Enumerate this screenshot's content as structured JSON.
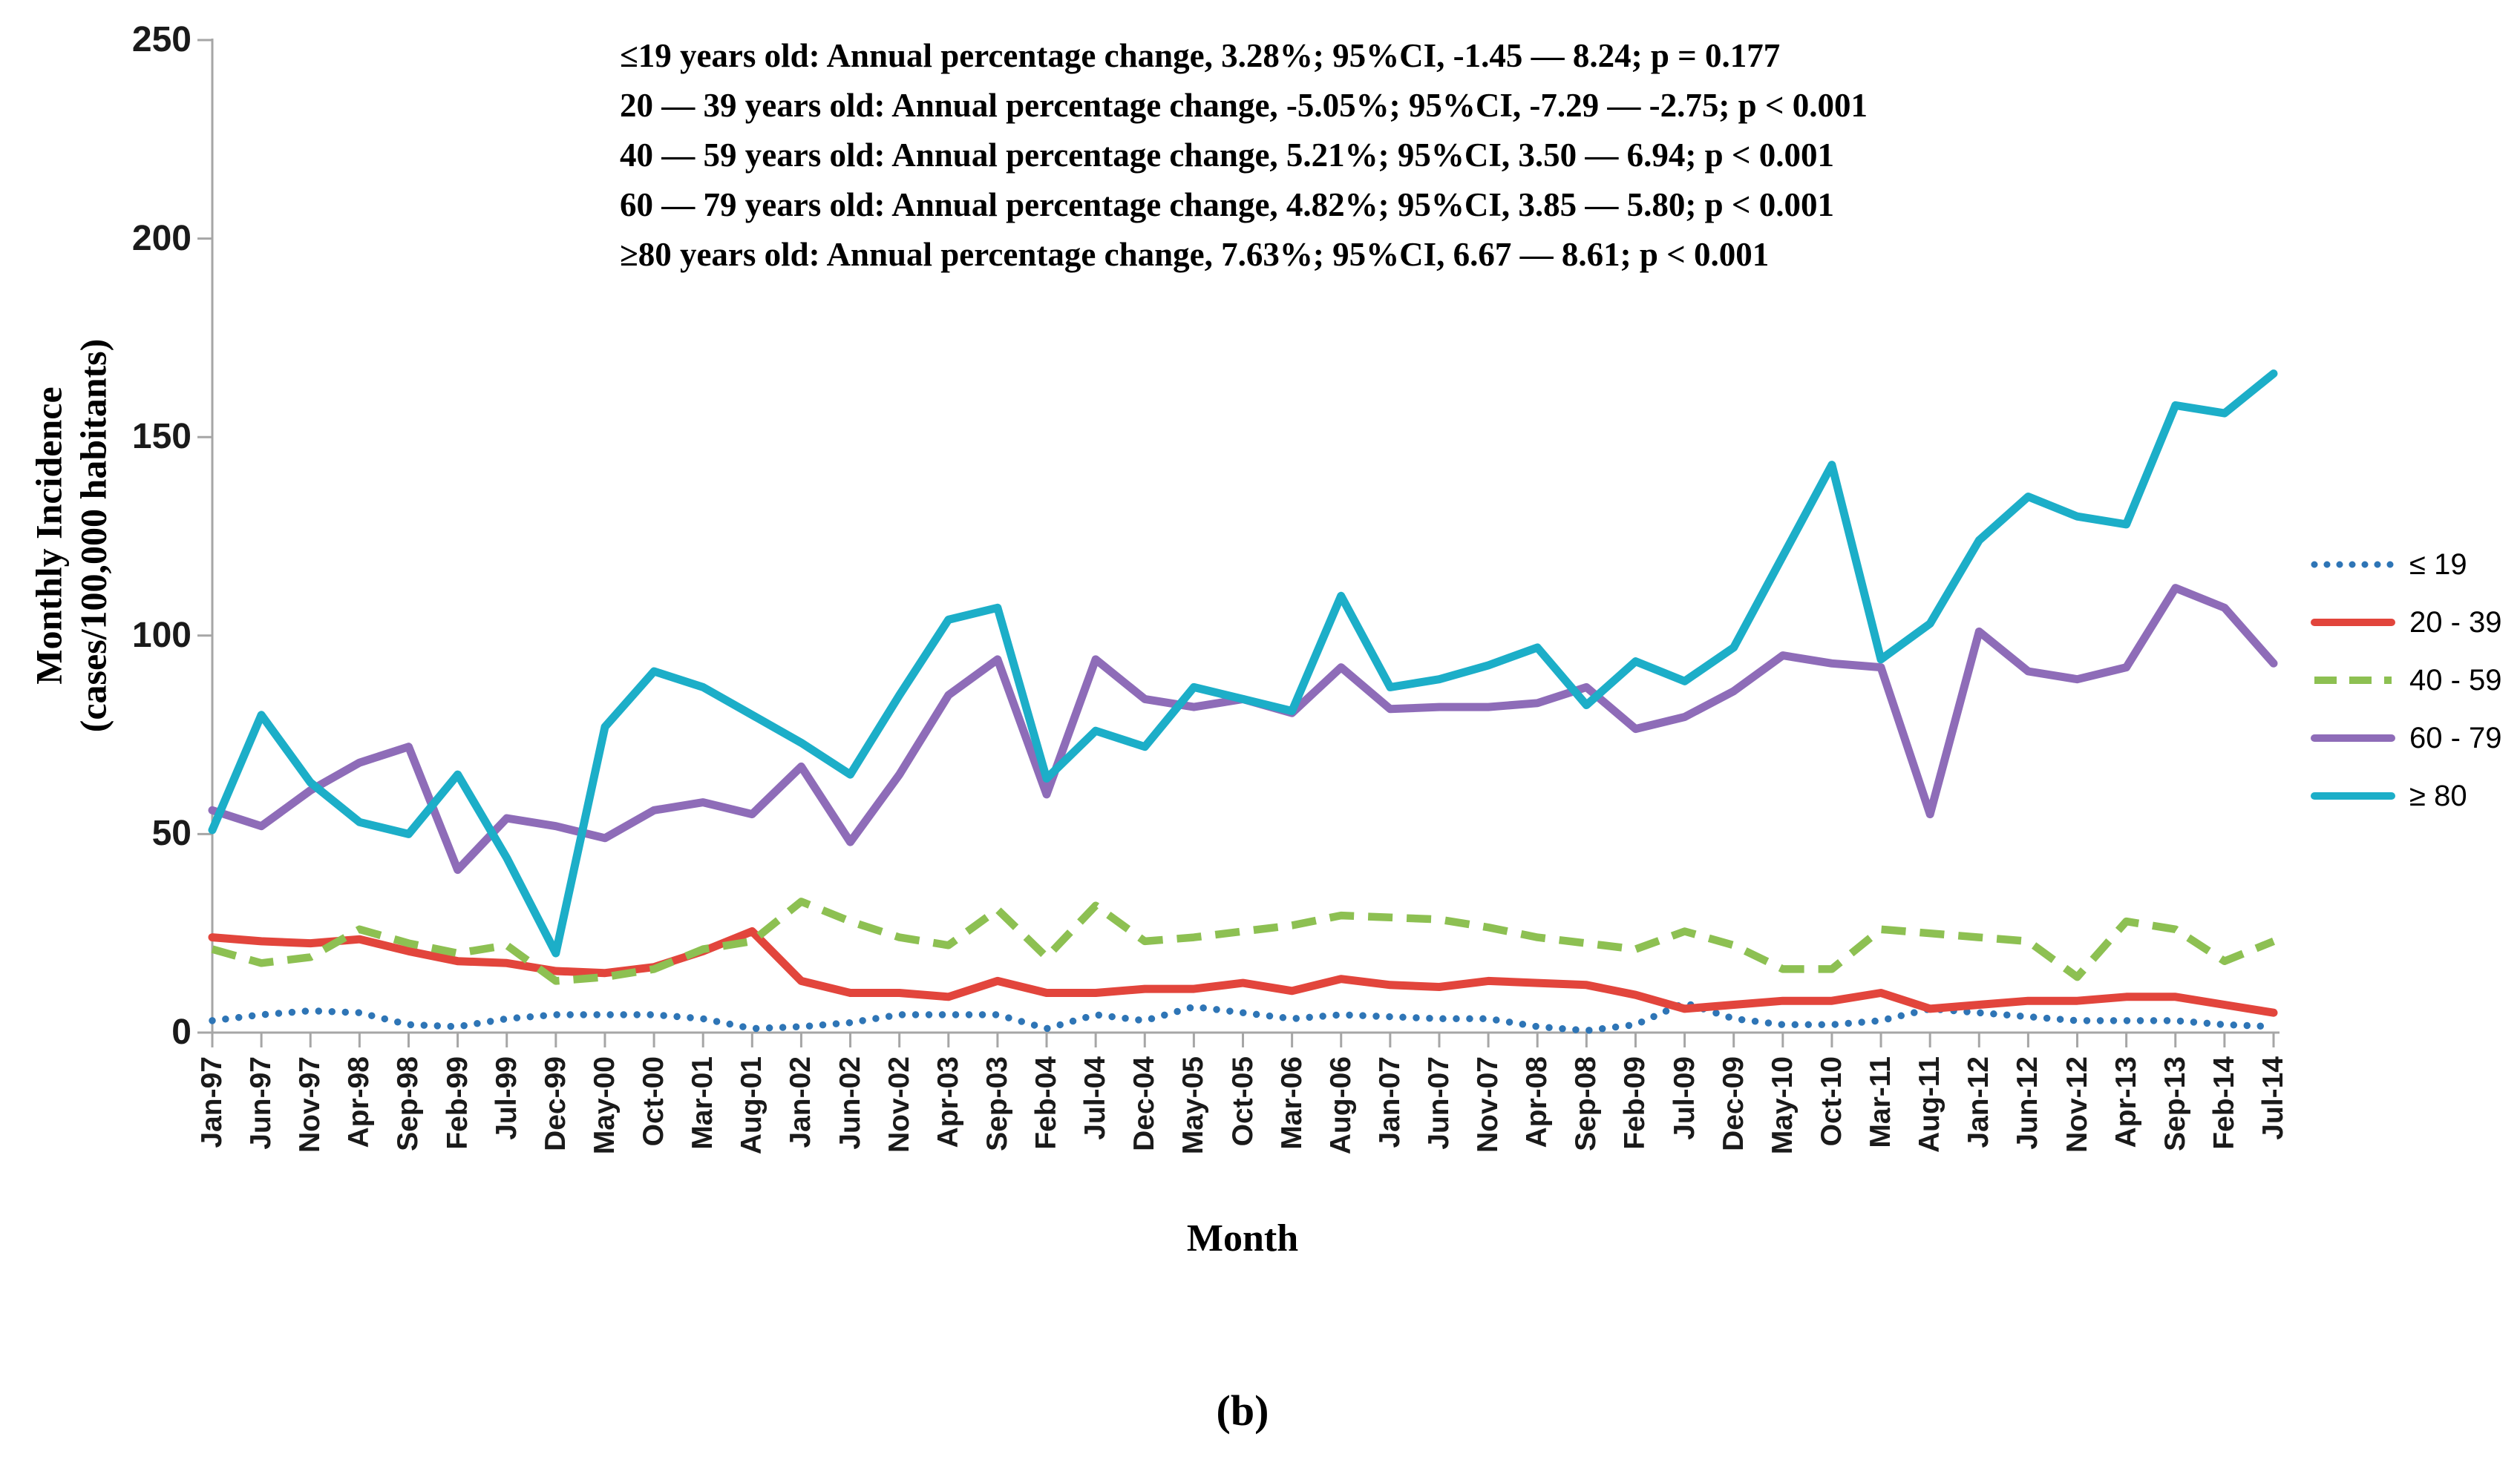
{
  "figure": {
    "caption": "(b)",
    "y_axis_title_line1": "Monthly Incidence",
    "y_axis_title_line2": "(cases/100,000 habitants)",
    "x_axis_title": "Month"
  },
  "annotations": {
    "line1": "≤19 years old: Annual percentage change, 3.28%; 95%CI, -1.45 — 8.24; p = 0.177",
    "line2": "20 — 39 years old: Annual percentage change, -5.05%; 95%CI, -7.29 — -2.75; p < 0.001",
    "line3": "40 — 59 years old: Annual percentage change, 5.21%; 95%CI, 3.50 — 6.94; p < 0.001",
    "line4": "60 — 79 years old: Annual percentage change, 4.82%; 95%CI, 3.85 — 5.80; p < 0.001",
    "line5": "≥80 years old: Annual percentage change, 7.63%; 95%CI, 6.67 — 8.61; p < 0.001"
  },
  "colors": {
    "axis": "#A6A6A6",
    "le19": "#2E75B6",
    "a2039": "#E2453C",
    "a4059": "#8DC052",
    "a6079": "#8E6CB8",
    "ge80": "#1CAEC8"
  },
  "chart_data": {
    "type": "line",
    "title": "",
    "xlabel": "Month",
    "ylabel": "Monthly Incidence (cases/100,000 habitants)",
    "ylim": [
      0,
      250
    ],
    "yticks": [
      0,
      50,
      100,
      150,
      200,
      250
    ],
    "grid": false,
    "legend_position": "right",
    "categories": [
      "Jan-97",
      "Jun-97",
      "Nov-97",
      "Apr-98",
      "Sep-98",
      "Feb-99",
      "Jul-99",
      "Dec-99",
      "May-00",
      "Oct-00",
      "Mar-01",
      "Aug-01",
      "Jan-02",
      "Jun-02",
      "Nov-02",
      "Apr-03",
      "Sep-03",
      "Feb-04",
      "Jul-04",
      "Dec-04",
      "May-05",
      "Oct-05",
      "Mar-06",
      "Aug-06",
      "Jan-07",
      "Jun-07",
      "Nov-07",
      "Apr-08",
      "Sep-08",
      "Feb-09",
      "Jul-09",
      "Dec-09",
      "May-10",
      "Oct-10",
      "Mar-11",
      "Aug-11",
      "Jan-12",
      "Jun-12",
      "Nov-12",
      "Apr-13",
      "Sep-13",
      "Feb-14",
      "Jul-14"
    ],
    "series": [
      {
        "key": "le19",
        "name": "≤ 19",
        "color": "#2E75B6",
        "line_style": "dotted",
        "values": [
          3,
          4.5,
          5.5,
          5,
          2,
          1.5,
          3.5,
          4.5,
          4.5,
          4.5,
          3.5,
          1,
          1.5,
          2.5,
          4.5,
          4.5,
          4.5,
          1,
          4.5,
          3,
          6.5,
          5,
          3.5,
          4.5,
          4,
          3.5,
          3.5,
          1.5,
          0.5,
          2,
          7.5,
          3.5,
          2,
          2,
          3,
          6,
          5,
          4,
          3,
          3,
          3,
          2,
          1.5
        ]
      },
      {
        "key": "a2039",
        "name": "20 - 39",
        "color": "#E2453C",
        "line_style": "solid",
        "values": [
          24,
          23,
          22.5,
          23.5,
          20.5,
          18,
          17.5,
          15.5,
          15,
          16.5,
          20.5,
          25.5,
          13,
          10,
          10,
          9,
          13,
          10,
          10,
          11,
          11,
          12.5,
          10.5,
          13.5,
          12,
          11.5,
          13,
          12.5,
          12,
          9.5,
          6,
          7,
          8,
          8,
          10,
          6,
          7,
          8,
          8,
          9,
          9,
          7,
          5
        ]
      },
      {
        "key": "a4059",
        "name": "40 - 59",
        "color": "#8DC052",
        "line_style": "dashed",
        "values": [
          21,
          17.5,
          19,
          26,
          22.5,
          20,
          22,
          13,
          14,
          16,
          21,
          23,
          33,
          28,
          24,
          22,
          31,
          19,
          32,
          23,
          24,
          25.5,
          27,
          29.5,
          29,
          28.5,
          26.5,
          24,
          22.5,
          21,
          25.5,
          22,
          16,
          16,
          26,
          25,
          24,
          23,
          14,
          28,
          26,
          18,
          23
        ]
      },
      {
        "key": "a6079",
        "name": "60 - 79",
        "color": "#8E6CB8",
        "line_style": "solid",
        "values": [
          56,
          52,
          61,
          68,
          72,
          41,
          54,
          52,
          49,
          56,
          58,
          55,
          67,
          48,
          65,
          85,
          94,
          60,
          94,
          84,
          82,
          84,
          80.5,
          92,
          81.5,
          82,
          82,
          83,
          87,
          76.5,
          79.5,
          86,
          95,
          93,
          92,
          55,
          101,
          91,
          89,
          92,
          112,
          107,
          93
        ]
      },
      {
        "key": "ge80",
        "name": "≥ 80",
        "color": "#1CAEC8",
        "line_style": "solid",
        "values": [
          51,
          80,
          63,
          53,
          50,
          65,
          44,
          20,
          77,
          91,
          87,
          80,
          73,
          65,
          85,
          104,
          107,
          64,
          76,
          72,
          87,
          84,
          81,
          110,
          87,
          89,
          92.5,
          97,
          82.5,
          93.5,
          88.5,
          97,
          120,
          143,
          94,
          103,
          124,
          135,
          130,
          128,
          158,
          156,
          166
        ]
      }
    ]
  }
}
